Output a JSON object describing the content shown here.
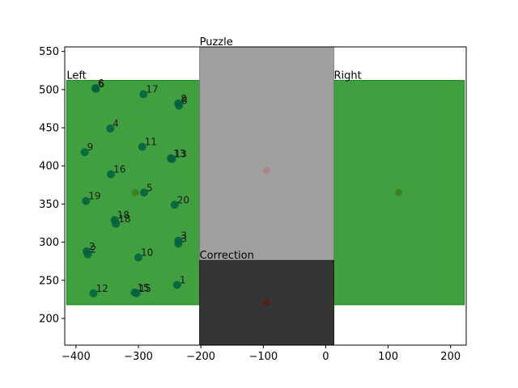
{
  "chart_data": {
    "type": "scatter",
    "title": "",
    "xlabel": "",
    "ylabel": "",
    "xlim": [
      -418,
      225
    ],
    "ylim": [
      165,
      556
    ],
    "x_ticks": [
      -400,
      -300,
      -200,
      -100,
      0,
      100,
      200
    ],
    "y_ticks": [
      200,
      250,
      300,
      350,
      400,
      450,
      500,
      550
    ],
    "grid": false,
    "regions": [
      {
        "name": "Left",
        "x0": -415,
        "x1": -202,
        "y0": 218,
        "y1": 512,
        "color": "#008000",
        "opacity": 0.75,
        "center": [
          -305,
          365
        ]
      },
      {
        "name": "Right",
        "x0": 13,
        "x1": 222,
        "y0": 218,
        "y1": 512,
        "color": "#008000",
        "opacity": 0.75,
        "center": [
          117,
          365
        ]
      },
      {
        "name": "Puzzle",
        "x0": -202,
        "x1": 13,
        "y0": 165,
        "y1": 556,
        "color": "#808080",
        "opacity": 0.75,
        "center": [
          -95,
          394
        ]
      },
      {
        "name": "Correction",
        "x0": -202,
        "x1": 13,
        "y0": 165,
        "y1": 276,
        "color": "#1a1a1a",
        "opacity": 0.8,
        "center": [
          -95,
          221
        ]
      }
    ],
    "point_color": "#006040",
    "points": [
      {
        "label": "1",
        "x": -238,
        "y": 244
      },
      {
        "label": "2",
        "x": -383,
        "y": 288
      },
      {
        "label": "2",
        "x": -381,
        "y": 284
      },
      {
        "label": "3",
        "x": -236,
        "y": 302
      },
      {
        "label": "3",
        "x": -236,
        "y": 298
      },
      {
        "label": "4",
        "x": -345,
        "y": 449
      },
      {
        "label": "5",
        "x": -291,
        "y": 365
      },
      {
        "label": "6",
        "x": -369,
        "y": 502
      },
      {
        "label": "6",
        "x": -368,
        "y": 501
      },
      {
        "label": "8",
        "x": -236,
        "y": 482
      },
      {
        "label": "8",
        "x": -235,
        "y": 479
      },
      {
        "label": "9",
        "x": -386,
        "y": 418
      },
      {
        "label": "10",
        "x": -300,
        "y": 280
      },
      {
        "label": "11",
        "x": -294,
        "y": 425
      },
      {
        "label": "12",
        "x": -372,
        "y": 233
      },
      {
        "label": "13",
        "x": -248,
        "y": 410
      },
      {
        "label": "13",
        "x": -246,
        "y": 409
      },
      {
        "label": "15",
        "x": -306,
        "y": 234
      },
      {
        "label": "15",
        "x": -303,
        "y": 233
      },
      {
        "label": "16",
        "x": -344,
        "y": 389
      },
      {
        "label": "17",
        "x": -292,
        "y": 494
      },
      {
        "label": "18",
        "x": -338,
        "y": 329
      },
      {
        "label": "18",
        "x": -336,
        "y": 324
      },
      {
        "label": "19",
        "x": -384,
        "y": 354
      },
      {
        "label": "20",
        "x": -242,
        "y": 349
      }
    ]
  }
}
